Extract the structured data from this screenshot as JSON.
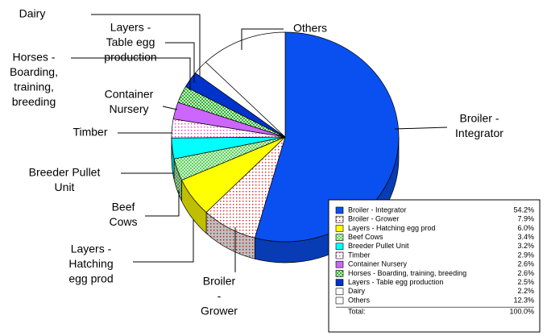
{
  "chart_data": {
    "type": "pie",
    "categories": [
      "Broiler - Integrator",
      "Broiler - Grower",
      "Layers - Hatching egg prod",
      "Beef Cows",
      "Breeder Pullet Unit",
      "Timber",
      "Container Nursery",
      "Horses - Boarding, training, breeding",
      "Layers - Table egg production",
      "Dairy",
      "Others"
    ],
    "values": [
      54.2,
      7.9,
      6.0,
      3.4,
      3.2,
      2.9,
      2.6,
      2.6,
      2.5,
      2.2,
      12.3
    ],
    "value_labels": [
      "54.2%",
      "7.9%",
      "6.0%",
      "3.4%",
      "3.2%",
      "2.9%",
      "2.6%",
      "2.6%",
      "2.5%",
      "2.2%",
      "12.3%"
    ],
    "colors": [
      "#0a50f0",
      "#e02020",
      "#ffff00",
      "#66cc66",
      "#00ffff",
      "#ff33cc",
      "#cc66ff",
      "#33aa33",
      "#0033cc",
      "#fffff0",
      "#ffffff"
    ],
    "patterns": [
      null,
      "dots",
      null,
      "checker",
      null,
      "dots",
      null,
      "checker",
      null,
      "dots",
      null
    ],
    "callouts": [
      [
        "Broiler -",
        "Integrator"
      ],
      [
        "Broiler",
        "-",
        "Grower"
      ],
      [
        "Layers -",
        "Hatching",
        "egg prod"
      ],
      [
        "Beef",
        "Cows"
      ],
      [
        "Breeder Pullet",
        "Unit"
      ],
      [
        "Timber"
      ],
      [
        "Container",
        "Nursery"
      ],
      [
        "Horses -",
        "Boarding,",
        "training,",
        "breeding"
      ],
      [
        "Layers -",
        "Table egg",
        "production"
      ],
      [
        "Dairy"
      ],
      [
        "Others"
      ]
    ],
    "total_label": "Total:",
    "total_value_label": "100.0%"
  }
}
